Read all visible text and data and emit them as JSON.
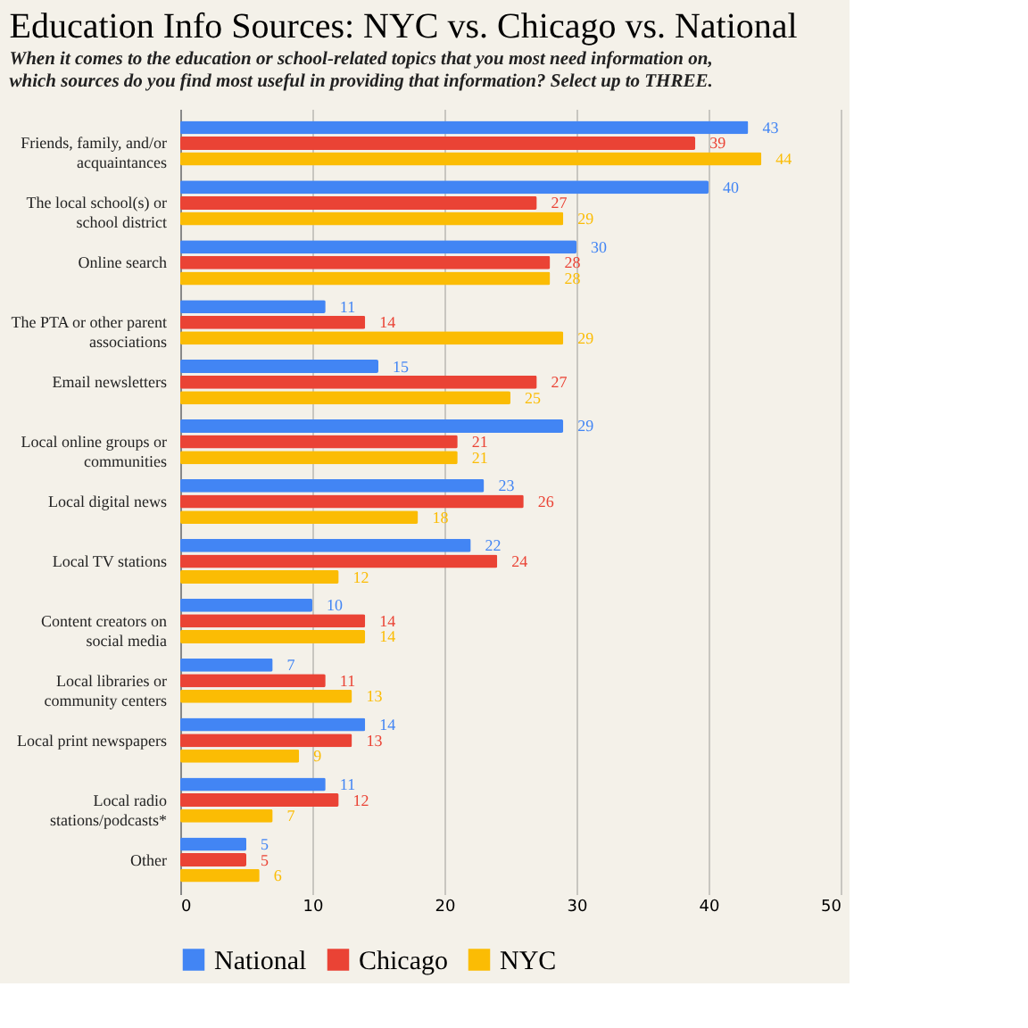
{
  "chart_data": {
    "type": "bar",
    "orientation": "horizontal",
    "title": "Education Info Sources: NYC vs. Chicago vs. National",
    "subtitle": "When it comes to the education or school-related topics that you most need information on, which sources do you find most useful in providing that information? Select up to THREE.",
    "categories": [
      "Friends, family, and/or acquaintances",
      "The local school(s) or school district",
      "Online search",
      "The PTA or other parent associations",
      "Email newsletters",
      "Local online groups or communities",
      "Local digital news",
      "Local TV stations",
      "Content creators on social media",
      "Local libraries or community centers",
      "Local print newspapers",
      "Local radio stations/podcasts*",
      "Other"
    ],
    "series": [
      {
        "name": "National",
        "color": "#4285f4",
        "values": [
          43,
          40,
          30,
          11,
          15,
          29,
          23,
          22,
          10,
          7,
          14,
          11,
          5
        ]
      },
      {
        "name": "Chicago",
        "color": "#ea4335",
        "values": [
          39,
          27,
          28,
          14,
          27,
          21,
          26,
          24,
          14,
          11,
          13,
          12,
          5
        ]
      },
      {
        "name": "NYC",
        "color": "#fbbc04",
        "values": [
          44,
          29,
          28,
          29,
          25,
          21,
          18,
          12,
          14,
          13,
          9,
          7,
          6
        ]
      }
    ],
    "xlim": [
      0,
      50
    ],
    "xticks": [
      0,
      10,
      20,
      30,
      40,
      50
    ],
    "grid": "x",
    "legend": "bottom",
    "data_labels": true
  }
}
